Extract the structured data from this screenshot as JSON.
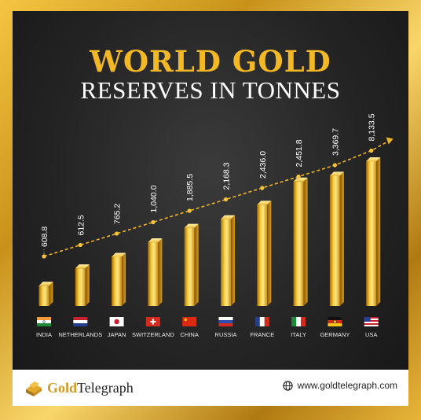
{
  "title_line1": "WORLD GOLD",
  "title_line2": "RESERVES  IN TONNES",
  "brand": {
    "part1": "Gold",
    "part2": "Telegraph"
  },
  "website": "www.goldtelegraph.com",
  "colors": {
    "gold": "#f2b825",
    "background": "#242424",
    "frame": "#d4a02a"
  },
  "chart_data": {
    "type": "bar",
    "categories": [
      "INDIA",
      "NETHERLANDS",
      "JAPAN",
      "SWITZERLAND",
      "CHINA",
      "RUSSIA",
      "FRANCE",
      "ITALY",
      "GERMANY",
      "USA"
    ],
    "values": [
      608.8,
      612.5,
      765.2,
      1040.0,
      1885.5,
      2168.3,
      2436.0,
      2451.8,
      3369.7,
      8133.5
    ],
    "value_labels": [
      "608.8",
      "612.5",
      "765.2",
      "1,040.0",
      "1,885.5",
      "2,168.3",
      "2,436.0",
      "2,451.8",
      "3,369.7",
      "8,133.5"
    ],
    "flags": [
      "india-flag",
      "netherlands-flag",
      "japan-flag",
      "switzerland-flag",
      "china-flag",
      "russia-flag",
      "france-flag",
      "italy-flag",
      "germany-flag",
      "usa-flag"
    ],
    "title": "WORLD GOLD RESERVES IN TONNES",
    "xlabel": "",
    "ylabel": "",
    "trend_line": true
  }
}
